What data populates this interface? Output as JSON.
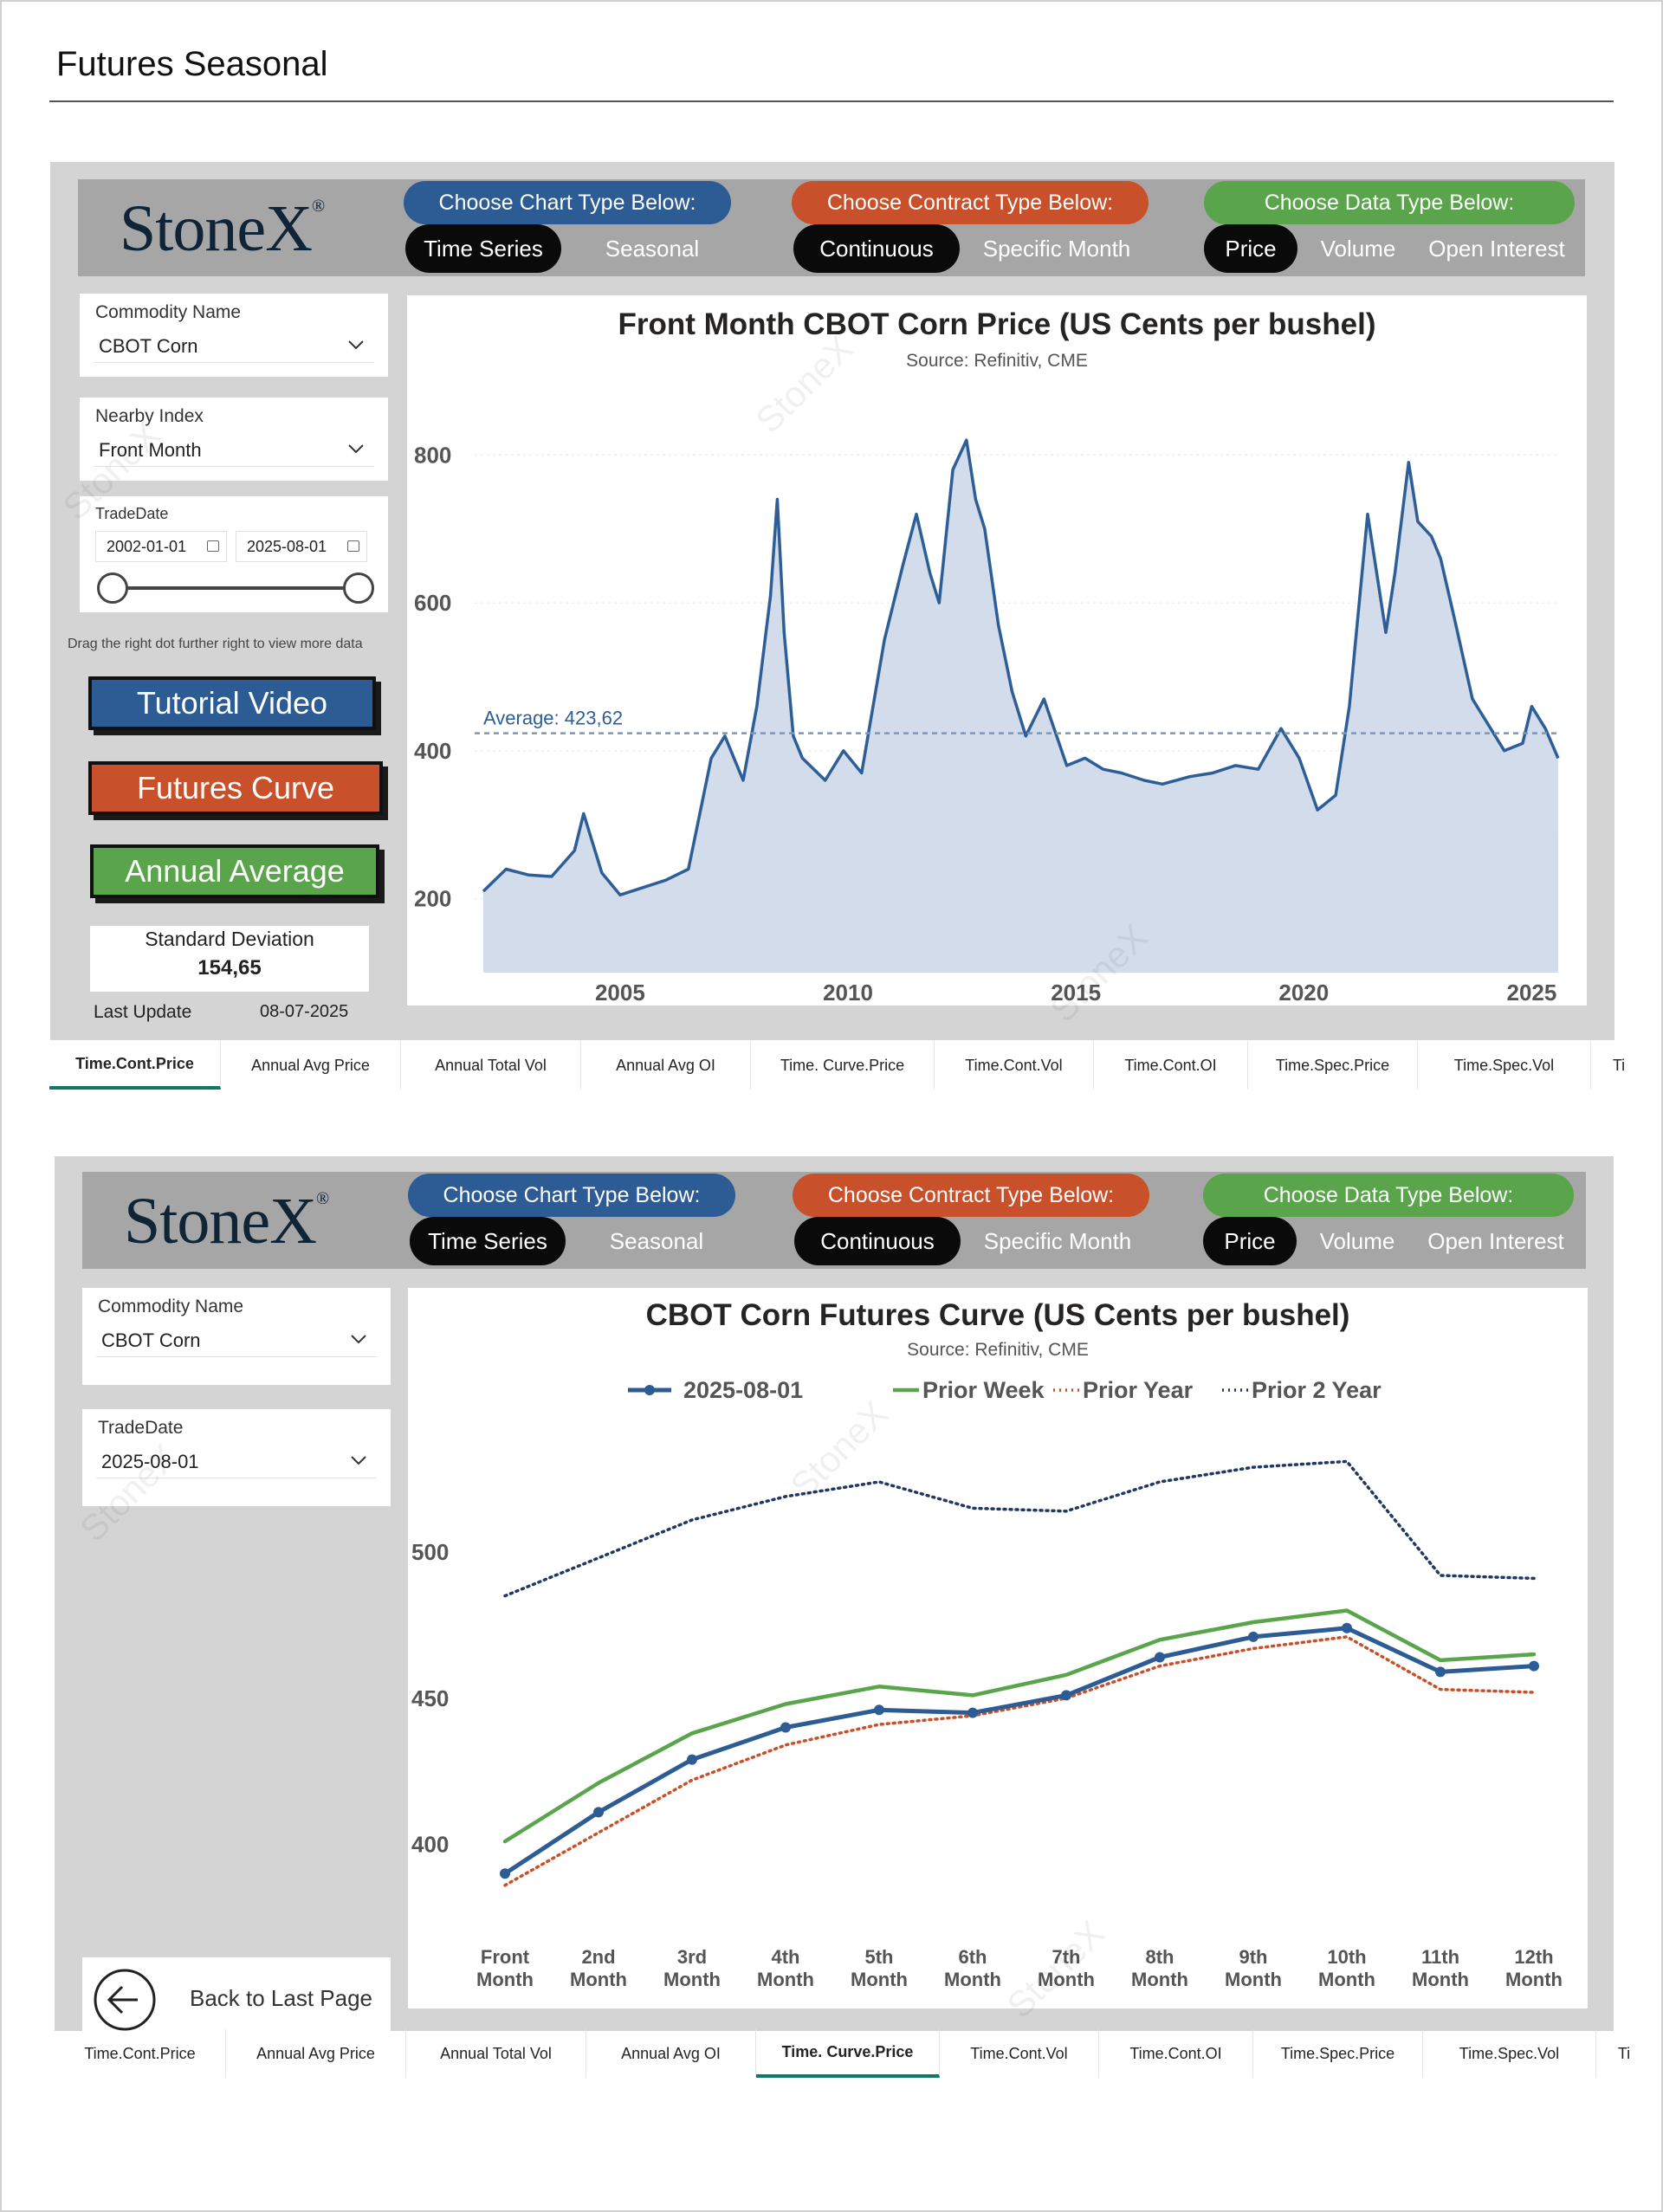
{
  "page": {
    "title": "Futures Seasonal"
  },
  "brand": {
    "logo_text": "StoneX",
    "logo_mark": "®",
    "watermark_text": "StoneX"
  },
  "dashboard_header": {
    "chart_type_label": "Choose Chart Type Below:",
    "chart_type_options": [
      "Time Series",
      "Seasonal"
    ],
    "contract_type_label": "Choose Contract Type Below:",
    "contract_type_options": [
      "Continuous",
      "Specific Month"
    ],
    "data_type_label": "Choose Data Type Below:",
    "data_type_options": [
      "Price",
      "Volume",
      "Open Interest"
    ]
  },
  "panel1": {
    "commodity_label": "Commodity Name",
    "commodity_value": "CBOT Corn",
    "nearby_label": "Nearby Index",
    "nearby_value": "Front Month",
    "tradedate_label": "TradeDate",
    "date_from": "2002-01-01",
    "date_to": "2025-08-01",
    "slider_hint": "Drag the right dot further right to view more data",
    "btn_tutorial": "Tutorial Video",
    "btn_curve": "Futures Curve",
    "btn_annual": "Annual Average",
    "sd_label": "Standard Deviation",
    "sd_value": "154,65",
    "last_update_label": "Last Update",
    "last_update_value": "08-07-2025"
  },
  "panel2": {
    "commodity_label": "Commodity Name",
    "commodity_value": "CBOT Corn",
    "tradedate_label": "TradeDate",
    "tradedate_value": "2025-08-01",
    "back_label": "Back to Last Page"
  },
  "tabs": [
    "Time.Cont.Price",
    "Annual Avg Price",
    "Annual Total Vol",
    "Annual Avg OI",
    "Time. Curve.Price",
    "Time.Cont.Vol",
    "Time.Cont.OI",
    "Time.Spec.Price",
    "Time.Spec.Vol",
    "Tim"
  ],
  "colors": {
    "blue": "#2d5b94",
    "orange": "#c8502a",
    "green": "#5aa54c",
    "navy": "#1f3864",
    "area": "#d3dcea",
    "line": "#2e5e96"
  },
  "chart_data": [
    {
      "type": "area",
      "title": "Front Month CBOT Corn Price (US Cents per bushel)",
      "subtitle": "Source: Refinitiv, CME",
      "xlim": [
        2002.0,
        2025.6
      ],
      "ylim": [
        100,
        880
      ],
      "yticks": [
        200,
        400,
        600,
        800
      ],
      "xticks": [
        2005,
        2010,
        2015,
        2020,
        2025
      ],
      "average": 423.62,
      "average_label": "Average: 423,62",
      "series": [
        {
          "x": [
            2002.0,
            2002.5,
            2003.0,
            2003.5,
            2004.0,
            2004.2,
            2004.6,
            2005.0,
            2005.5,
            2006.0,
            2006.5,
            2006.8,
            2007.0,
            2007.3,
            2007.7,
            2008.0,
            2008.3,
            2008.45,
            2008.6,
            2008.8,
            2009.0,
            2009.5,
            2009.9,
            2010.3,
            2010.8,
            2011.2,
            2011.5,
            2011.8,
            2012.0,
            2012.3,
            2012.6,
            2012.8,
            2013.0,
            2013.3,
            2013.6,
            2013.9,
            2014.3,
            2014.8,
            2015.2,
            2015.6,
            2016.0,
            2016.5,
            2016.9,
            2017.5,
            2018.0,
            2018.5,
            2019.0,
            2019.5,
            2019.9,
            2020.3,
            2020.7,
            2021.0,
            2021.4,
            2021.8,
            2022.0,
            2022.3,
            2022.5,
            2022.8,
            2023.0,
            2023.3,
            2023.7,
            2024.0,
            2024.4,
            2024.8,
            2025.0,
            2025.3,
            2025.58
          ],
          "values": [
            210,
            240,
            232,
            230,
            265,
            315,
            235,
            205,
            215,
            225,
            240,
            330,
            390,
            420,
            360,
            460,
            610,
            740,
            560,
            420,
            390,
            360,
            400,
            370,
            550,
            650,
            720,
            640,
            600,
            780,
            820,
            740,
            700,
            570,
            480,
            420,
            470,
            380,
            390,
            375,
            370,
            360,
            355,
            365,
            370,
            380,
            375,
            430,
            390,
            320,
            340,
            460,
            720,
            560,
            640,
            790,
            710,
            690,
            660,
            580,
            470,
            440,
            400,
            410,
            460,
            430,
            390
          ]
        }
      ]
    },
    {
      "type": "line",
      "title": "CBOT Corn Futures Curve (US Cents per bushel)",
      "subtitle": "Source: Refinitiv, CME",
      "categories": [
        "Front Month",
        "2nd Month",
        "3rd Month",
        "4th Month",
        "5th Month",
        "6th Month",
        "7th Month",
        "8th Month",
        "9th Month",
        "10th Month",
        "11th Month",
        "12th Month"
      ],
      "ylim": [
        380,
        540
      ],
      "yticks": [
        400,
        450,
        500
      ],
      "legend": "top",
      "series": [
        {
          "name": "2025-08-01",
          "color": "#2d5b94",
          "style": "solid-marker",
          "values": [
            390,
            411,
            429,
            440,
            446,
            445,
            451,
            464,
            471,
            474,
            459,
            461
          ]
        },
        {
          "name": "Prior Week",
          "color": "#5aa54c",
          "style": "solid",
          "values": [
            401,
            421,
            438,
            448,
            454,
            451,
            458,
            470,
            476,
            480,
            463,
            465
          ]
        },
        {
          "name": "Prior Year",
          "color": "#c8502a",
          "style": "dotted",
          "values": [
            386,
            404,
            422,
            434,
            441,
            444,
            450,
            461,
            467,
            471,
            453,
            452
          ]
        },
        {
          "name": "Prior 2 Year",
          "color": "#1f3864",
          "style": "dotted",
          "values": [
            485,
            498,
            511,
            519,
            524,
            515,
            514,
            524,
            529,
            531,
            492,
            491
          ]
        }
      ]
    }
  ]
}
